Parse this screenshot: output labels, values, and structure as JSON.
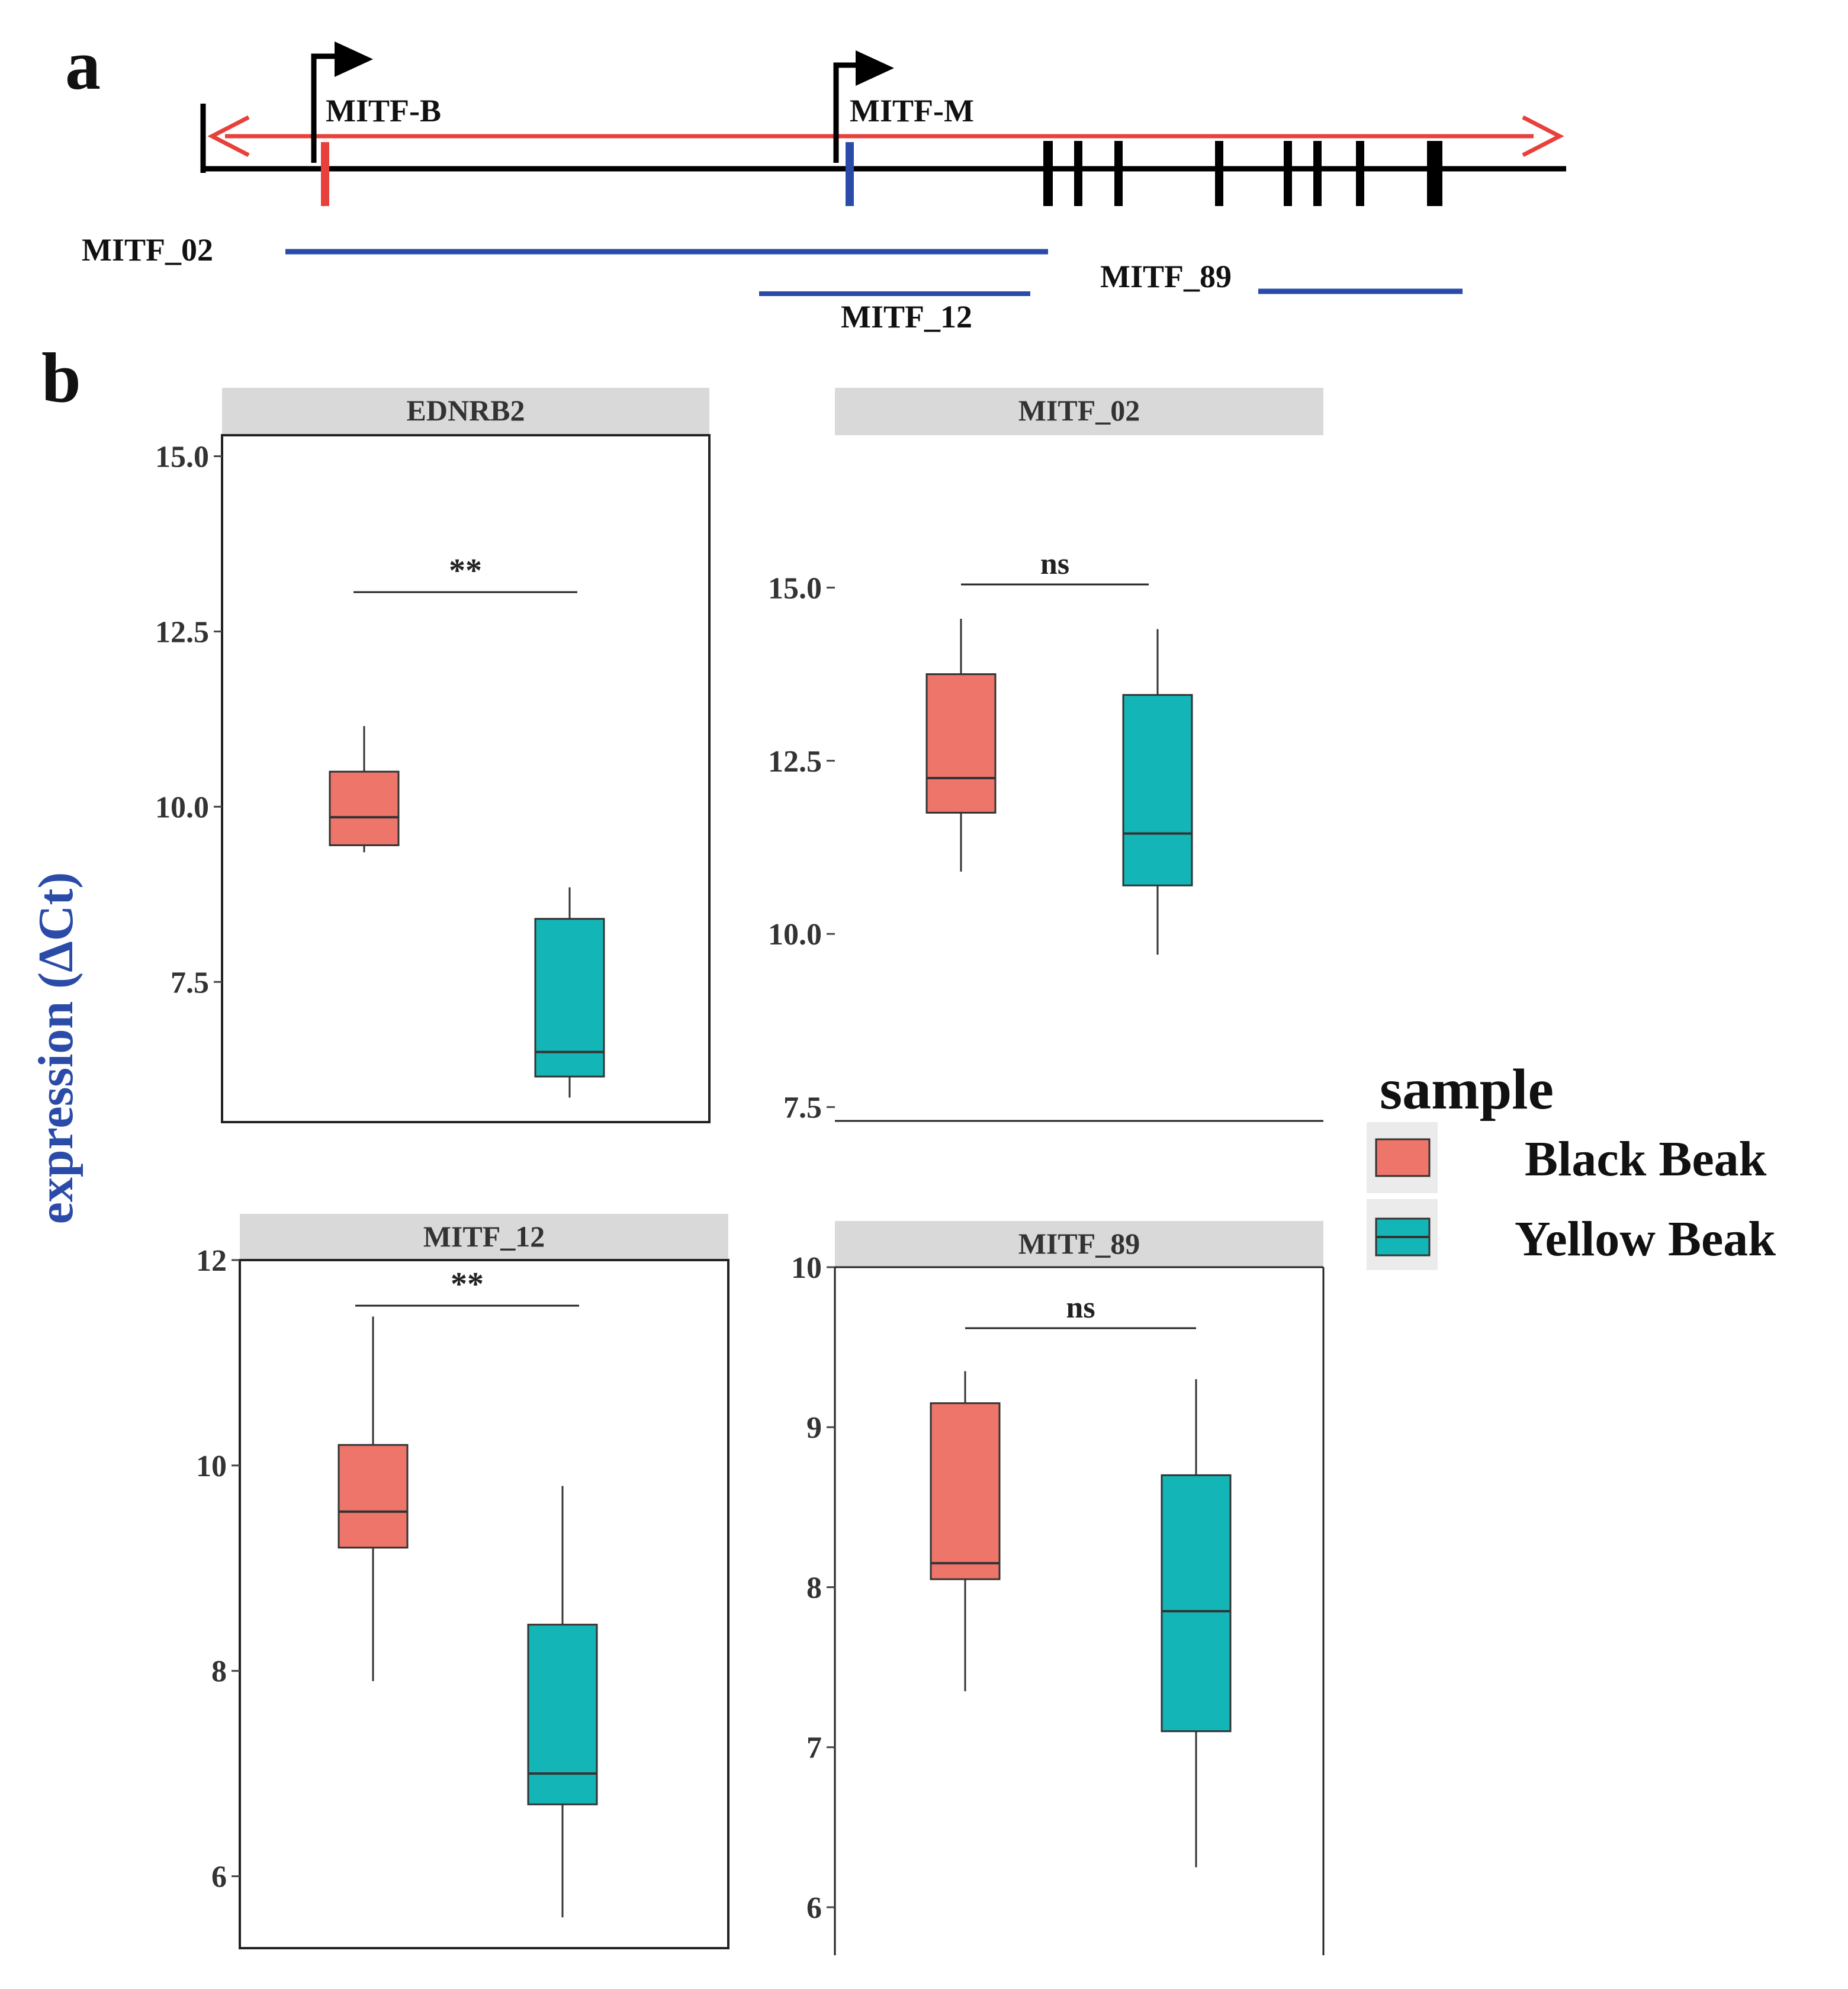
{
  "panel_labels": {
    "a": "a",
    "b": "b"
  },
  "gene_diagram": {
    "promoters": [
      "MITF-B",
      "MITF-M"
    ],
    "amplicons": [
      "MITF_02",
      "MITF_12",
      "MITF_89"
    ]
  },
  "y_axis_label": "expression (ΔCt)",
  "legend": {
    "title": "sample",
    "items": [
      {
        "label": "Black Beak",
        "color": "#ED756A"
      },
      {
        "label": "Yellow Beak",
        "color": "#14B5B6"
      }
    ]
  },
  "chart_data": [
    {
      "type": "box",
      "title": "EDNRB2",
      "ylim": [
        5.5,
        15.3
      ],
      "yticks": [
        7.5,
        10.0,
        12.5,
        15.0
      ],
      "tick_labels": [
        "7.5",
        "10.0",
        "12.5",
        "15.0"
      ],
      "significance": "**",
      "series": [
        {
          "name": "Black Beak",
          "min": 9.35,
          "q1": 9.45,
          "median": 9.85,
          "q3": 10.5,
          "max": 11.15
        },
        {
          "name": "Yellow Beak",
          "min": 5.85,
          "q1": 6.15,
          "median": 6.5,
          "q3": 8.4,
          "max": 8.85
        }
      ]
    },
    {
      "type": "box",
      "title": "MITF_02",
      "ylim": [
        7.3,
        17.2
      ],
      "yticks": [
        7.5,
        10.0,
        12.5,
        15.0
      ],
      "tick_labels": [
        "7.5",
        "10.0",
        "12.5",
        "15.0"
      ],
      "significance": "ns",
      "series": [
        {
          "name": "Black Beak",
          "min": 10.9,
          "q1": 11.75,
          "median": 12.25,
          "q3": 13.75,
          "max": 14.55
        },
        {
          "name": "Yellow Beak",
          "min": 9.7,
          "q1": 10.7,
          "median": 11.45,
          "q3": 13.45,
          "max": 14.4
        }
      ]
    },
    {
      "type": "box",
      "title": "MITF_12",
      "ylim": [
        5.3,
        12.0
      ],
      "yticks": [
        6,
        8,
        10,
        12
      ],
      "tick_labels": [
        "6",
        "8",
        "10",
        "12"
      ],
      "significance": "**",
      "series": [
        {
          "name": "Black Beak",
          "min": 7.9,
          "q1": 9.2,
          "median": 9.55,
          "q3": 10.2,
          "max": 11.45
        },
        {
          "name": "Yellow Beak",
          "min": 5.6,
          "q1": 6.7,
          "median": 7.0,
          "q3": 8.45,
          "max": 9.8
        }
      ]
    },
    {
      "type": "box",
      "title": "MITF_89",
      "ylim": [
        5.7,
        10.0
      ],
      "yticks": [
        6,
        7,
        8,
        9,
        10
      ],
      "tick_labels": [
        "6",
        "7",
        "8",
        "9",
        "10"
      ],
      "significance": "ns",
      "series": [
        {
          "name": "Black Beak",
          "min": 7.35,
          "q1": 8.05,
          "median": 8.15,
          "q3": 9.15,
          "max": 9.35
        },
        {
          "name": "Yellow Beak",
          "min": 6.25,
          "q1": 7.1,
          "median": 7.85,
          "q3": 8.7,
          "max": 9.3
        }
      ]
    }
  ]
}
